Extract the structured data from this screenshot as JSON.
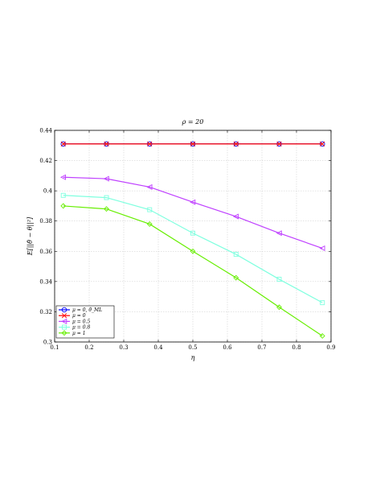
{
  "chart_data": {
    "type": "line",
    "title": "ρ = 20",
    "xlabel": "η",
    "ylabel": "E[||θ̂ − θ||²]",
    "xlim": [
      0.1,
      0.9
    ],
    "ylim": [
      0.3,
      0.44
    ],
    "xticks": [
      "0.1",
      "0.2",
      "0.3",
      "0.4",
      "0.5",
      "0.6",
      "0.7",
      "0.8",
      "0.9"
    ],
    "yticks": [
      "0.3",
      "0.32",
      "0.34",
      "0.36",
      "0.38",
      "0.4",
      "0.42",
      "0.44"
    ],
    "grid": true,
    "legend_position": "bottom-left",
    "x": [
      0.125,
      0.25,
      0.375,
      0.5,
      0.625,
      0.75,
      0.875
    ],
    "series": [
      {
        "name": "μ = 0, θ̂_ML",
        "color": "#0000ff",
        "marker": "circle",
        "values": [
          0.431,
          0.431,
          0.431,
          0.431,
          0.431,
          0.431,
          0.431
        ]
      },
      {
        "name": "μ = 0",
        "color": "#ff0000",
        "marker": "x",
        "values": [
          0.431,
          0.431,
          0.431,
          0.431,
          0.431,
          0.431,
          0.431
        ]
      },
      {
        "name": "μ = 0.5",
        "color": "#bf40ff",
        "marker": "triangle-left",
        "values": [
          0.409,
          0.408,
          0.4025,
          0.3925,
          0.383,
          0.372,
          0.362
        ]
      },
      {
        "name": "μ = 0.8",
        "color": "#7fffdf",
        "marker": "square",
        "values": [
          0.397,
          0.3955,
          0.3875,
          0.372,
          0.358,
          0.3415,
          0.326
        ]
      },
      {
        "name": "μ = 1",
        "color": "#66ee00",
        "marker": "diamond",
        "values": [
          0.39,
          0.388,
          0.378,
          0.36,
          0.3425,
          0.323,
          0.304
        ]
      }
    ]
  }
}
